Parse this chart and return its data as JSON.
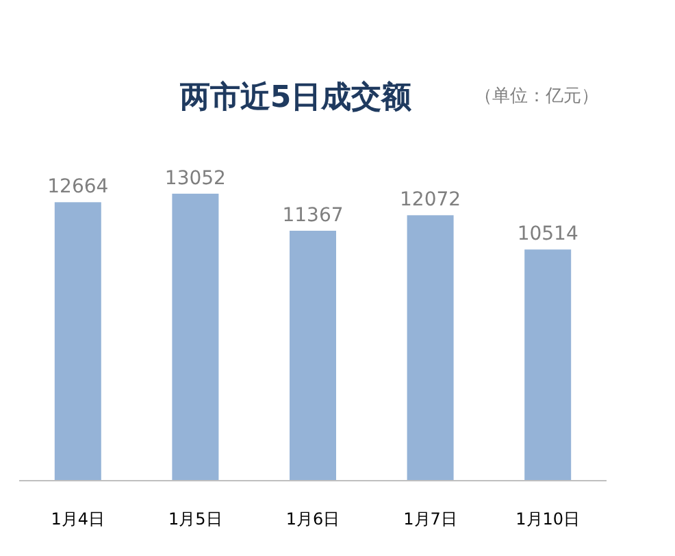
{
  "chart_data": {
    "type": "bar",
    "title": "两市近5日成交额",
    "subtitle": "（单位：亿元）",
    "categories": [
      "1月4日",
      "1月5日",
      "1月6日",
      "1月7日",
      "1月10日"
    ],
    "values": [
      12664,
      13052,
      11367,
      12072,
      10514
    ],
    "color": "#95b3d7",
    "data_labels": true
  }
}
